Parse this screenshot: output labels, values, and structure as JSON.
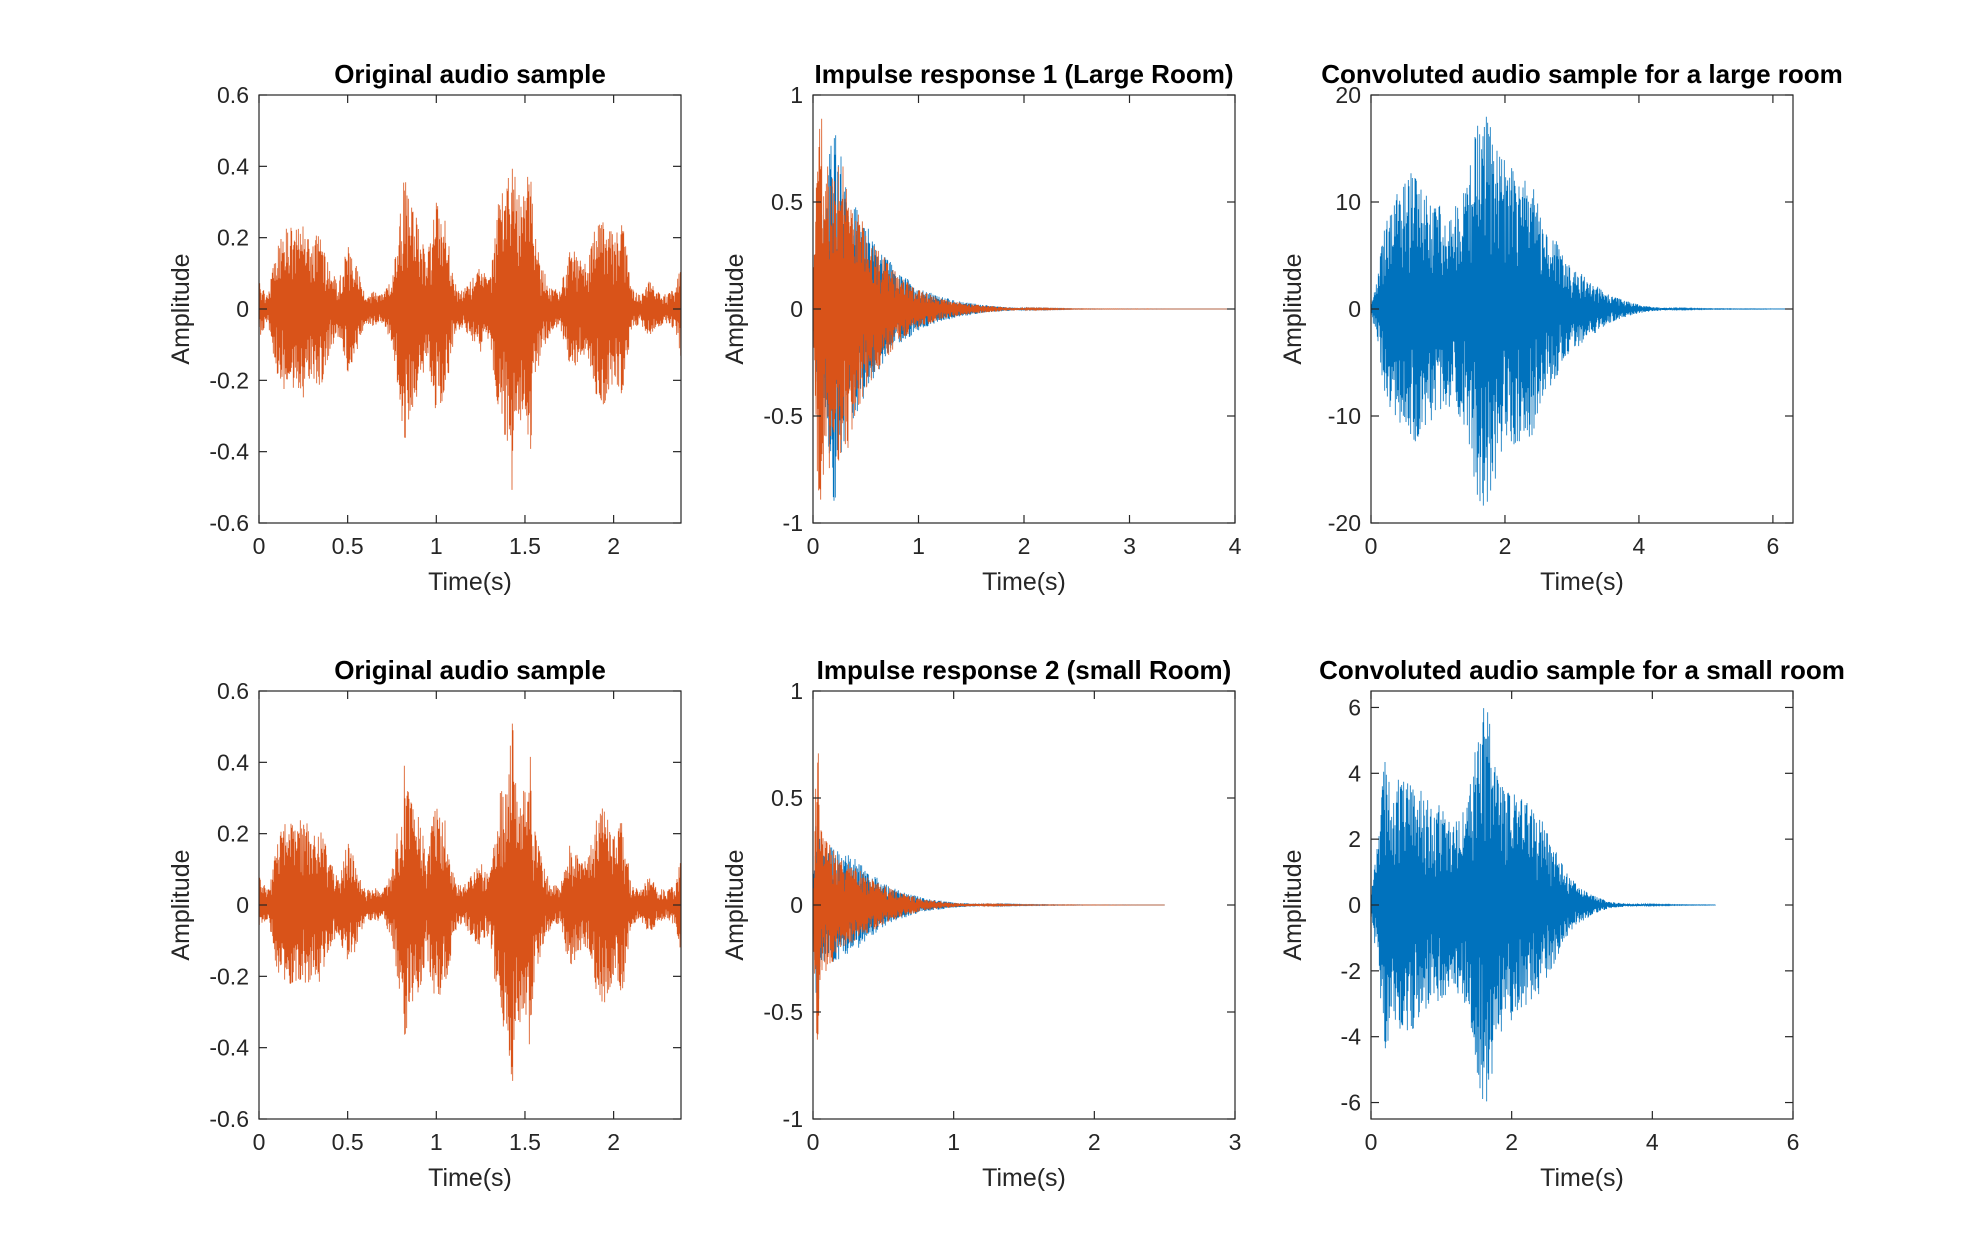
{
  "chart_data": [
    {
      "type": "line",
      "title": "Original audio sample",
      "xlabel": "Time(s)",
      "ylabel": "Amplitude",
      "xlim": [
        0,
        2.38
      ],
      "ylim": [
        -0.6,
        0.6
      ],
      "xticks": [
        0,
        0.5,
        1,
        1.5,
        2
      ],
      "xtick_labels": [
        "0",
        "0.5",
        "1",
        "1.5",
        "2"
      ],
      "yticks": [
        -0.6,
        -0.4,
        -0.2,
        0,
        0.2,
        0.4,
        0.6
      ],
      "ytick_labels": [
        "-0.6",
        "-0.4",
        "-0.2",
        "0",
        "0.2",
        "0.4",
        "0.6"
      ],
      "grid": false,
      "series": [
        {
          "color": "#D95319",
          "x": [
            0,
            0.05,
            0.1,
            0.15,
            0.2,
            0.25,
            0.3,
            0.35,
            0.4,
            0.45,
            0.5,
            0.55,
            0.6,
            0.65,
            0.7,
            0.75,
            0.8,
            0.82,
            0.85,
            0.9,
            0.95,
            1.0,
            1.05,
            1.1,
            1.15,
            1.2,
            1.25,
            1.3,
            1.35,
            1.4,
            1.43,
            1.45,
            1.5,
            1.53,
            1.55,
            1.6,
            1.65,
            1.7,
            1.75,
            1.8,
            1.85,
            1.9,
            1.95,
            2.0,
            2.05,
            2.1,
            2.15,
            2.2,
            2.25,
            2.3,
            2.35,
            2.38
          ],
          "envelope": [
            0.08,
            0.04,
            0.18,
            0.24,
            0.22,
            0.25,
            0.2,
            0.22,
            0.12,
            0.08,
            0.18,
            0.12,
            0.04,
            0.05,
            0.04,
            0.1,
            0.28,
            0.4,
            0.3,
            0.25,
            0.15,
            0.3,
            0.25,
            0.08,
            0.05,
            0.09,
            0.12,
            0.08,
            0.3,
            0.38,
            0.53,
            0.35,
            0.32,
            0.42,
            0.22,
            0.12,
            0.06,
            0.05,
            0.18,
            0.15,
            0.12,
            0.25,
            0.28,
            0.2,
            0.25,
            0.06,
            0.04,
            0.08,
            0.05,
            0.04,
            0.06,
            0.14
          ]
        }
      ]
    },
    {
      "type": "line",
      "title": "Impulse response 1 (Large Room)",
      "xlabel": "Time(s)",
      "ylabel": "Amplitude",
      "xlim": [
        0,
        4
      ],
      "ylim": [
        -1,
        1
      ],
      "xticks": [
        0,
        1,
        2,
        3,
        4
      ],
      "xtick_labels": [
        "0",
        "1",
        "2",
        "3",
        "4"
      ],
      "yticks": [
        -1,
        -0.5,
        0,
        0.5,
        1
      ],
      "ytick_labels": [
        "-1",
        "-0.5",
        "0",
        "0.5",
        "1"
      ],
      "grid": false,
      "series": [
        {
          "color": "#0072BD",
          "x": [
            0,
            0.05,
            0.1,
            0.2,
            0.3,
            0.4,
            0.5,
            0.6,
            0.8,
            1.0,
            1.2,
            1.4,
            1.6,
            1.8,
            2.0,
            2.5,
            3.0,
            3.5,
            3.95
          ],
          "envelope": [
            0.1,
            0.45,
            0.5,
            0.95,
            0.6,
            0.5,
            0.4,
            0.3,
            0.18,
            0.1,
            0.06,
            0.035,
            0.02,
            0.01,
            0.004,
            0.001,
            0.0004,
            0.0002,
            0.0001
          ]
        },
        {
          "color": "#D95319",
          "x": [
            0,
            0.05,
            0.1,
            0.2,
            0.3,
            0.4,
            0.5,
            0.6,
            0.8,
            1.0,
            1.2,
            1.4,
            1.6,
            1.8,
            2.0,
            2.5,
            3.0,
            3.5,
            3.95
          ],
          "envelope": [
            0.1,
            0.92,
            0.88,
            0.7,
            0.72,
            0.5,
            0.38,
            0.3,
            0.16,
            0.09,
            0.05,
            0.03,
            0.018,
            0.009,
            0.004,
            0.001,
            0.0004,
            0.0002,
            0.0001
          ]
        }
      ]
    },
    {
      "type": "line",
      "title": "Convoluted audio sample for a large room",
      "xlabel": "Time(s)",
      "ylabel": "Amplitude",
      "xlim": [
        0,
        6.3
      ],
      "ylim": [
        -20,
        20
      ],
      "xticks": [
        0,
        2,
        4,
        6
      ],
      "xtick_labels": [
        "0",
        "2",
        "4",
        "6"
      ],
      "yticks": [
        -20,
        -10,
        0,
        10,
        20
      ],
      "ytick_labels": [
        "-20",
        "-10",
        "0",
        "10",
        "20"
      ],
      "grid": false,
      "series": [
        {
          "color": "#0072BD",
          "x": [
            0,
            0.1,
            0.2,
            0.4,
            0.6,
            0.8,
            1.0,
            1.2,
            1.4,
            1.6,
            1.7,
            1.8,
            2.0,
            2.2,
            2.4,
            2.6,
            2.8,
            3.0,
            3.2,
            3.4,
            3.6,
            3.8,
            4.0,
            4.2,
            4.5,
            5.0,
            6.3
          ],
          "envelope": [
            0.5,
            3,
            8,
            11,
            13,
            11,
            10,
            9,
            11,
            18,
            19,
            17,
            14,
            13,
            12,
            8,
            6,
            4,
            3,
            2,
            1.2,
            0.8,
            0.4,
            0.2,
            0.08,
            0.03,
            0.01
          ]
        }
      ]
    },
    {
      "type": "line",
      "title": "Original audio sample",
      "xlabel": "Time(s)",
      "ylabel": "Amplitude",
      "xlim": [
        0,
        2.38
      ],
      "ylim": [
        -0.6,
        0.6
      ],
      "xticks": [
        0,
        0.5,
        1,
        1.5,
        2
      ],
      "xtick_labels": [
        "0",
        "0.5",
        "1",
        "1.5",
        "2"
      ],
      "yticks": [
        -0.6,
        -0.4,
        -0.2,
        0,
        0.2,
        0.4,
        0.6
      ],
      "ytick_labels": [
        "-0.6",
        "-0.4",
        "-0.2",
        "0",
        "0.2",
        "0.4",
        "0.6"
      ],
      "grid": false,
      "series": [
        {
          "color": "#D95319",
          "x": [
            0,
            0.05,
            0.1,
            0.15,
            0.2,
            0.25,
            0.3,
            0.35,
            0.4,
            0.45,
            0.5,
            0.55,
            0.6,
            0.65,
            0.7,
            0.75,
            0.8,
            0.82,
            0.85,
            0.9,
            0.95,
            1.0,
            1.05,
            1.1,
            1.15,
            1.2,
            1.25,
            1.3,
            1.35,
            1.4,
            1.43,
            1.45,
            1.5,
            1.53,
            1.55,
            1.6,
            1.65,
            1.7,
            1.75,
            1.8,
            1.85,
            1.9,
            1.95,
            2.0,
            2.05,
            2.1,
            2.15,
            2.2,
            2.25,
            2.3,
            2.35,
            2.38
          ],
          "envelope": [
            0.08,
            0.04,
            0.18,
            0.24,
            0.22,
            0.25,
            0.2,
            0.22,
            0.12,
            0.08,
            0.18,
            0.12,
            0.04,
            0.05,
            0.04,
            0.1,
            0.28,
            0.4,
            0.3,
            0.25,
            0.15,
            0.3,
            0.25,
            0.08,
            0.05,
            0.09,
            0.12,
            0.08,
            0.3,
            0.38,
            0.53,
            0.35,
            0.32,
            0.42,
            0.22,
            0.12,
            0.06,
            0.05,
            0.18,
            0.15,
            0.12,
            0.25,
            0.28,
            0.2,
            0.25,
            0.06,
            0.04,
            0.08,
            0.05,
            0.04,
            0.06,
            0.14
          ]
        }
      ]
    },
    {
      "type": "line",
      "title": "Impulse response 2 (small Room)",
      "xlabel": "Time(s)",
      "ylabel": "Amplitude",
      "xlim": [
        0,
        3
      ],
      "ylim": [
        -1,
        1
      ],
      "xticks": [
        0,
        1,
        2,
        3
      ],
      "xtick_labels": [
        "0",
        "1",
        "2",
        "3"
      ],
      "yticks": [
        -1,
        -0.5,
        0,
        0.5,
        1
      ],
      "ytick_labels": [
        "-1",
        "-0.5",
        "0",
        "0.5",
        "1"
      ],
      "grid": false,
      "series": [
        {
          "color": "#0072BD",
          "x": [
            0,
            0.03,
            0.06,
            0.1,
            0.2,
            0.3,
            0.4,
            0.6,
            0.8,
            1.0,
            1.2,
            1.5,
            2.0,
            2.5
          ],
          "envelope": [
            0.1,
            0.55,
            0.3,
            0.28,
            0.25,
            0.22,
            0.15,
            0.07,
            0.03,
            0.012,
            0.005,
            0.002,
            0.0005,
            0.0001
          ]
        },
        {
          "color": "#D95319",
          "x": [
            0,
            0.03,
            0.06,
            0.1,
            0.2,
            0.3,
            0.4,
            0.6,
            0.8,
            1.0,
            1.2,
            1.5,
            2.0,
            2.5
          ],
          "envelope": [
            0.1,
            0.93,
            0.35,
            0.3,
            0.22,
            0.18,
            0.13,
            0.06,
            0.025,
            0.01,
            0.004,
            0.0015,
            0.0004,
            0.0001
          ]
        }
      ]
    },
    {
      "type": "line",
      "title": "Convoluted audio sample for a small room",
      "xlabel": "Time(s)",
      "ylabel": "Amplitude",
      "xlim": [
        0,
        6
      ],
      "ylim": [
        -6.5,
        6.5
      ],
      "xticks": [
        0,
        2,
        4,
        6
      ],
      "xtick_labels": [
        "0",
        "2",
        "4",
        "6"
      ],
      "yticks": [
        -6,
        -4,
        -2,
        0,
        2,
        4,
        6
      ],
      "ytick_labels": [
        "-6",
        "-4",
        "-2",
        "0",
        "2",
        "4",
        "6"
      ],
      "grid": false,
      "series": [
        {
          "color": "#0072BD",
          "x": [
            0,
            0.1,
            0.2,
            0.3,
            0.4,
            0.6,
            0.8,
            1.0,
            1.2,
            1.4,
            1.5,
            1.6,
            1.7,
            1.8,
            2.0,
            2.2,
            2.4,
            2.6,
            2.8,
            3.0,
            3.2,
            3.4,
            3.6,
            4.0,
            4.5,
            4.9
          ],
          "envelope": [
            0.3,
            2,
            4.8,
            3.5,
            4,
            3.8,
            3.2,
            3,
            2.5,
            3.5,
            5,
            6.5,
            5.5,
            4,
            3.5,
            3.2,
            2.8,
            1.8,
            0.9,
            0.5,
            0.25,
            0.1,
            0.05,
            0.02,
            0.008,
            0.004
          ]
        }
      ]
    }
  ]
}
